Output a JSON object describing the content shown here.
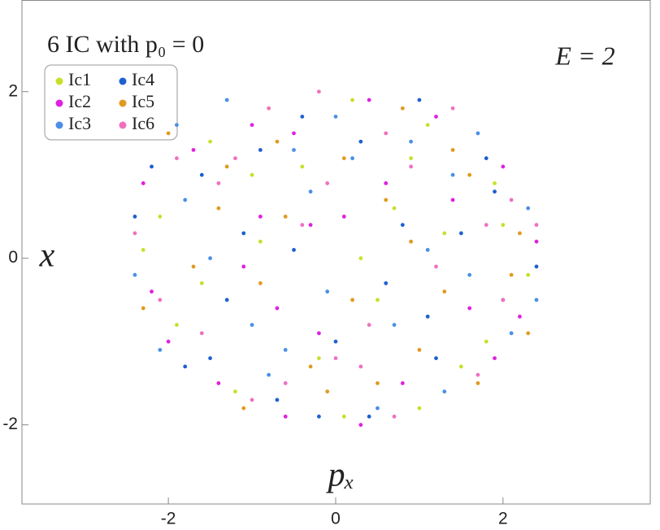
{
  "chart_data": {
    "type": "scatter",
    "title": "6 IC with p₀ = 0",
    "annotation": "E = 2",
    "xlabel": "pₓ",
    "ylabel": "x",
    "xlim": [
      -3.75,
      3.76
    ],
    "ylim": [
      -2.95,
      3.1
    ],
    "xticks": [
      -2,
      0,
      2
    ],
    "yticks": [
      -2,
      0,
      2
    ],
    "legend": "upper left",
    "series": [
      {
        "name": "Ic1",
        "color": "#c8e02a",
        "x": [
          -2.1,
          -1.5,
          -0.8,
          0.2,
          1.1,
          1.9,
          2.3,
          -1.9,
          -0.4,
          0.7,
          1.5,
          -1.2,
          0.1,
          1.0,
          -2.3,
          -0.9,
          0.5,
          1.8,
          -1.6,
          0.9,
          -0.2,
          2.0,
          -1.0,
          0.3,
          1.3
        ],
        "values": [
          0.5,
          1.4,
          1.8,
          1.9,
          1.6,
          0.9,
          -0.2,
          -0.8,
          1.1,
          0.6,
          -1.3,
          -1.6,
          -1.9,
          -1.8,
          0.1,
          0.2,
          -0.5,
          -1.0,
          -0.3,
          1.2,
          -1.2,
          0.4,
          1.0,
          0.0,
          0.3
        ]
      },
      {
        "name": "Ic2",
        "color": "#e020e0",
        "x": [
          -2.3,
          -1.7,
          -1.0,
          -0.3,
          0.4,
          1.2,
          2.0,
          2.4,
          -2.0,
          -0.6,
          0.1,
          0.8,
          1.6,
          -1.4,
          -0.2,
          0.6,
          1.4,
          -0.9,
          -0.5,
          -2.2,
          1.9,
          0.3,
          -1.1,
          2.2,
          -0.7
        ],
        "values": [
          0.9,
          1.3,
          1.6,
          0.4,
          1.9,
          1.7,
          1.1,
          0.2,
          -1.0,
          -1.9,
          0.5,
          -1.5,
          -0.6,
          -1.5,
          -0.9,
          0.9,
          0.7,
          0.5,
          1.5,
          -0.4,
          -1.2,
          -2.0,
          -0.1,
          -0.7,
          -0.6
        ]
      },
      {
        "name": "Ic3",
        "color": "#4a8fe8",
        "x": [
          -2.4,
          -1.8,
          -1.3,
          -0.5,
          0.0,
          0.9,
          1.7,
          2.3,
          -2.1,
          -0.8,
          0.5,
          1.3,
          2.1,
          -1.5,
          -0.1,
          1.1,
          -0.3,
          0.7,
          -1.9,
          1.6,
          -1.0,
          0.2,
          2.4,
          -0.6,
          1.4
        ],
        "values": [
          -0.2,
          0.7,
          1.9,
          1.3,
          1.7,
          1.4,
          1.5,
          0.6,
          -1.1,
          -1.4,
          -1.8,
          -1.6,
          -0.9,
          0.0,
          -0.4,
          0.1,
          0.8,
          -0.8,
          1.6,
          -0.2,
          -0.8,
          1.2,
          -0.5,
          -1.1,
          1.0
        ]
      },
      {
        "name": "Ic4",
        "color": "#1f5fd0",
        "x": [
          -2.2,
          -1.6,
          -1.1,
          -0.4,
          0.3,
          1.0,
          1.8,
          2.4,
          -1.8,
          -0.7,
          0.4,
          1.2,
          2.0,
          -1.3,
          0.0,
          0.8,
          -0.2,
          1.5,
          -2.4,
          0.6,
          -0.9,
          1.9,
          -0.5,
          1.1,
          -1.5
        ],
        "values": [
          1.1,
          1.0,
          0.3,
          1.7,
          1.4,
          1.9,
          1.2,
          -0.1,
          -1.3,
          -1.7,
          -1.9,
          -1.2,
          -0.5,
          -0.5,
          -1.0,
          0.4,
          -1.9,
          0.3,
          0.5,
          -0.3,
          1.3,
          0.8,
          0.1,
          -0.7,
          -1.2
        ]
      },
      {
        "name": "Ic5",
        "color": "#e09a20",
        "x": [
          -2.0,
          -1.4,
          -0.7,
          0.1,
          0.8,
          1.6,
          2.2,
          -2.3,
          -1.1,
          -0.3,
          0.5,
          1.3,
          2.3,
          -1.7,
          0.2,
          1.0,
          -0.6,
          1.7,
          -0.1,
          0.9,
          -1.3,
          2.1,
          -0.9,
          0.6,
          1.4
        ],
        "values": [
          1.5,
          0.6,
          1.4,
          1.2,
          1.8,
          1.0,
          0.3,
          -0.6,
          -1.8,
          -1.3,
          -1.5,
          -0.4,
          -0.9,
          -0.1,
          -0.5,
          -1.1,
          0.5,
          -1.5,
          -1.6,
          0.2,
          1.1,
          -0.2,
          -0.3,
          0.7,
          1.3
        ]
      },
      {
        "name": "Ic6",
        "color": "#f070c0",
        "x": [
          -2.4,
          -1.9,
          -1.2,
          -0.2,
          0.6,
          1.4,
          2.1,
          -2.1,
          -1.0,
          0.0,
          0.7,
          1.7,
          2.4,
          -1.6,
          -0.4,
          0.4,
          1.2,
          -0.8,
          0.9,
          -1.4,
          2.0,
          -0.1,
          1.8,
          -0.6,
          0.3
        ],
        "values": [
          0.3,
          1.2,
          1.2,
          2.0,
          1.5,
          1.8,
          0.7,
          -0.5,
          -1.7,
          -1.2,
          -1.9,
          -1.4,
          0.4,
          -0.9,
          0.4,
          -0.8,
          -0.1,
          1.8,
          1.1,
          0.9,
          -0.5,
          0.9,
          0.4,
          -1.5,
          -1.3
        ]
      }
    ]
  }
}
